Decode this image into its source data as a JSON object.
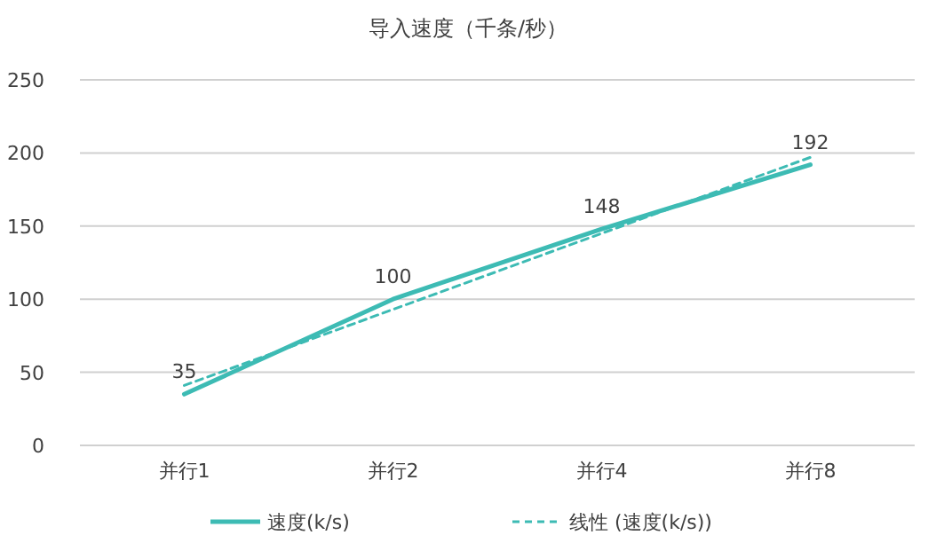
{
  "chart_data": {
    "type": "line",
    "title": "导入速度（千条/秒）",
    "categories": [
      "并行1",
      "并行2",
      "并行4",
      "并行8"
    ],
    "series": [
      {
        "name": "速度(k/s)",
        "color": "#3dbbb4",
        "values": [
          35,
          100,
          148,
          192
        ],
        "value_labels": [
          "35",
          "100",
          "148",
          "192"
        ],
        "line_style": "solid"
      },
      {
        "name": "线性 (速度(k/s))",
        "color": "#3dbbb4",
        "values": [
          41,
          93,
          145,
          197
        ],
        "line_style": "dashed"
      }
    ],
    "ylim": [
      0,
      250
    ],
    "yticks": [
      0,
      50,
      100,
      150,
      200,
      250
    ],
    "grid": "y",
    "legend": "bottom",
    "marker": "none"
  }
}
